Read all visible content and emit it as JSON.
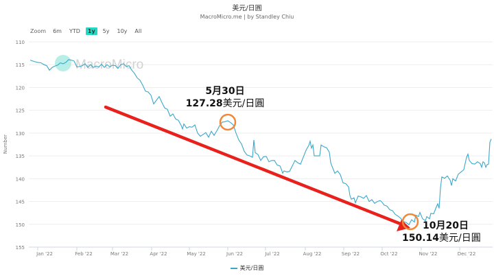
{
  "header": {
    "title": "美元/日圓",
    "subtitle": "MacroMicro.me | by Standley Chiu"
  },
  "range_selector": {
    "label": "Zoom",
    "buttons": [
      {
        "label": "6m",
        "active": false
      },
      {
        "label": "YTD",
        "active": false
      },
      {
        "label": "1y",
        "active": true
      },
      {
        "label": "5y",
        "active": false
      },
      {
        "label": "10y",
        "active": false
      },
      {
        "label": "All",
        "active": false
      }
    ]
  },
  "watermark": "MacroMicro",
  "legend": {
    "label": "美元/日圓",
    "color": "#3aa7c9"
  },
  "annotations": [
    {
      "date": "5月30日",
      "value": "127.28",
      "unit": "美元/日圓",
      "circle_color": "#f0883a"
    },
    {
      "date": "10月20日",
      "value": "150.14",
      "unit": "美元/日圓",
      "circle_color": "#f0883a"
    }
  ],
  "trend_arrow": {
    "color": "#e8211c",
    "direction": "down"
  },
  "colors": {
    "line": "#3aa7c9",
    "accent": "#24d7c0",
    "arrow": "#e8211c",
    "circle": "#f0883a"
  },
  "chart_data": {
    "type": "line",
    "title": "美元/日圓",
    "subtitle": "MacroMicro.me | by Standley Chiu",
    "xlabel": "",
    "ylabel": "Number",
    "y_reversed": true,
    "ylim": [
      110,
      155
    ],
    "yticks": [
      110,
      115,
      120,
      125,
      130,
      135,
      140,
      145,
      150,
      155
    ],
    "xticks": [
      "Jan '22",
      "Feb '22",
      "Mar '22",
      "Apr '22",
      "May '22",
      "Jun '22",
      "Jul '22",
      "Aug '22",
      "Sep '22",
      "Oct '22",
      "Nov '22",
      "Dec '22"
    ],
    "grid": true,
    "legend_position": "bottom",
    "series": [
      {
        "name": "美元/日圓",
        "points": [
          [
            44,
            114.0
          ],
          [
            50,
            114.3
          ],
          [
            55,
            114.5
          ],
          [
            60,
            114.6
          ],
          [
            64,
            115.0
          ],
          [
            68,
            115.2
          ],
          [
            72,
            116.2
          ],
          [
            76,
            115.6
          ],
          [
            80,
            115.3
          ],
          [
            84,
            115.1
          ],
          [
            88,
            114.6
          ],
          [
            92,
            114.8
          ],
          [
            96,
            114.5
          ],
          [
            100,
            113.9
          ],
          [
            104,
            114.0
          ],
          [
            108,
            114.2
          ],
          [
            112,
            115.5
          ],
          [
            116,
            115.4
          ],
          [
            120,
            115.2
          ],
          [
            124,
            114.8
          ],
          [
            128,
            115.6
          ],
          [
            132,
            115.0
          ],
          [
            136,
            115.6
          ],
          [
            140,
            115.3
          ],
          [
            144,
            115.5
          ],
          [
            148,
            114.9
          ],
          [
            152,
            115.6
          ],
          [
            156,
            115.0
          ],
          [
            160,
            115.5
          ],
          [
            164,
            115.1
          ],
          [
            168,
            115.2
          ],
          [
            172,
            115.8
          ],
          [
            176,
            115.0
          ],
          [
            180,
            114.8
          ],
          [
            184,
            115.4
          ],
          [
            188,
            115.2
          ],
          [
            192,
            116.2
          ],
          [
            196,
            116.9
          ],
          [
            200,
            117.9
          ],
          [
            204,
            118.4
          ],
          [
            208,
            119.5
          ],
          [
            212,
            120.8
          ],
          [
            216,
            121.0
          ],
          [
            220,
            121.7
          ],
          [
            224,
            123.6
          ],
          [
            228,
            122.8
          ],
          [
            232,
            122.0
          ],
          [
            236,
            123.3
          ],
          [
            240,
            124.5
          ],
          [
            244,
            124.8
          ],
          [
            248,
            126.3
          ],
          [
            252,
            125.8
          ],
          [
            256,
            126.9
          ],
          [
            260,
            127.2
          ],
          [
            264,
            128.3
          ],
          [
            266,
            129.1
          ],
          [
            268,
            128.0
          ],
          [
            272,
            128.9
          ],
          [
            276,
            128.6
          ],
          [
            280,
            128.7
          ],
          [
            284,
            128.2
          ],
          [
            288,
            130.0
          ],
          [
            292,
            130.7
          ],
          [
            296,
            130.3
          ],
          [
            300,
            129.9
          ],
          [
            304,
            130.9
          ],
          [
            308,
            129.6
          ],
          [
            312,
            130.5
          ],
          [
            316,
            129.5
          ],
          [
            320,
            128.4
          ],
          [
            324,
            127.6
          ],
          [
            328,
            127.5
          ],
          [
            332,
            127.3
          ],
          [
            336,
            127.7
          ],
          [
            340,
            128.2
          ],
          [
            344,
            130.0
          ],
          [
            348,
            131.5
          ],
          [
            352,
            132.4
          ],
          [
            356,
            134.0
          ],
          [
            360,
            134.8
          ],
          [
            364,
            135.0
          ],
          [
            368,
            135.3
          ],
          [
            370,
            131.5
          ],
          [
            372,
            134.3
          ],
          [
            376,
            134.7
          ],
          [
            380,
            136.0
          ],
          [
            384,
            135.2
          ],
          [
            388,
            135.1
          ],
          [
            392,
            136.3
          ],
          [
            396,
            136.0
          ],
          [
            400,
            136.0
          ],
          [
            404,
            137.0
          ],
          [
            408,
            137.2
          ],
          [
            410,
            137.9
          ],
          [
            412,
            138.8
          ],
          [
            414,
            138.3
          ],
          [
            418,
            138.5
          ],
          [
            422,
            138.4
          ],
          [
            426,
            137.2
          ],
          [
            430,
            136.0
          ],
          [
            434,
            136.5
          ],
          [
            438,
            136.8
          ],
          [
            442,
            135.3
          ],
          [
            446,
            133.8
          ],
          [
            450,
            132.7
          ],
          [
            452,
            131.8
          ],
          [
            454,
            133.3
          ],
          [
            456,
            132.6
          ],
          [
            458,
            135.0
          ],
          [
            462,
            135.0
          ],
          [
            466,
            135.0
          ],
          [
            468,
            132.6
          ],
          [
            472,
            133.0
          ],
          [
            476,
            133.2
          ],
          [
            480,
            134.2
          ],
          [
            482,
            136.5
          ],
          [
            484,
            137.3
          ],
          [
            488,
            138.8
          ],
          [
            492,
            138.3
          ],
          [
            496,
            139.1
          ],
          [
            500,
            140.9
          ],
          [
            504,
            141.1
          ],
          [
            508,
            141.8
          ],
          [
            510,
            143.7
          ],
          [
            512,
            144.5
          ],
          [
            516,
            144.2
          ],
          [
            518,
            145.3
          ],
          [
            522,
            143.8
          ],
          [
            526,
            144.0
          ],
          [
            530,
            144.3
          ],
          [
            534,
            143.7
          ],
          [
            538,
            145.0
          ],
          [
            542,
            144.6
          ],
          [
            546,
            145.4
          ],
          [
            550,
            145.0
          ],
          [
            554,
            144.8
          ],
          [
            556,
            145.0
          ],
          [
            560,
            145.8
          ],
          [
            564,
            146.0
          ],
          [
            568,
            146.8
          ],
          [
            572,
            147.0
          ],
          [
            576,
            147.8
          ],
          [
            580,
            148.2
          ],
          [
            584,
            148.7
          ],
          [
            588,
            149.4
          ],
          [
            592,
            149.6
          ],
          [
            596,
            150.1
          ],
          [
            600,
            149.0
          ],
          [
            604,
            149.5
          ],
          [
            606,
            148.0
          ],
          [
            610,
            148.3
          ],
          [
            612,
            147.4
          ],
          [
            616,
            148.8
          ],
          [
            620,
            149.2
          ],
          [
            622,
            148.3
          ],
          [
            626,
            148.8
          ],
          [
            628,
            147.6
          ],
          [
            632,
            147.7
          ],
          [
            636,
            146.2
          ],
          [
            638,
            145.5
          ],
          [
            640,
            146.5
          ],
          [
            642,
            142.0
          ],
          [
            644,
            139.6
          ],
          [
            648,
            139.9
          ],
          [
            652,
            139.4
          ],
          [
            656,
            140.3
          ],
          [
            658,
            141.5
          ],
          [
            660,
            140.0
          ],
          [
            664,
            140.5
          ],
          [
            668,
            139.0
          ],
          [
            672,
            138.5
          ],
          [
            674,
            138.3
          ],
          [
            676,
            138.0
          ],
          [
            680,
            135.3
          ],
          [
            682,
            134.6
          ],
          [
            684,
            136.0
          ],
          [
            688,
            136.7
          ],
          [
            692,
            136.8
          ],
          [
            696,
            136.3
          ],
          [
            700,
            136.7
          ],
          [
            702,
            137.5
          ],
          [
            704,
            136.3
          ],
          [
            706,
            136.5
          ],
          [
            708,
            137.5
          ],
          [
            710,
            136.9
          ],
          [
            712,
            136.8
          ],
          [
            714,
            132.0
          ],
          [
            716,
            131.3
          ]
        ]
      }
    ],
    "annotations": [
      {
        "x_label": "5月30日",
        "y": 127.28,
        "text": "127.28美元/日圓"
      },
      {
        "x_label": "10月20日",
        "y": 150.14,
        "text": "150.14美元/日圓"
      }
    ]
  }
}
